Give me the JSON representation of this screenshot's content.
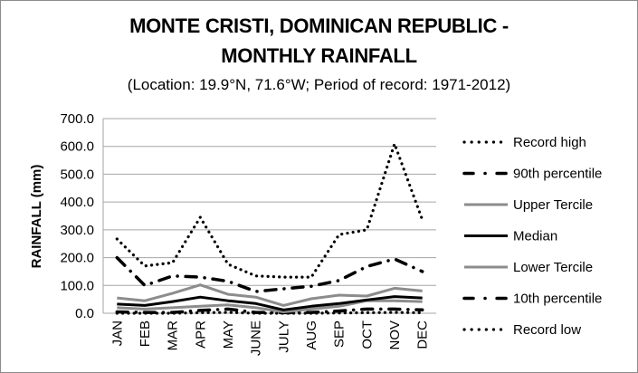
{
  "chart_data": {
    "type": "line",
    "title_line1": "MONTE CRISTI, DOMINICAN REPUBLIC -",
    "title_line2": "MONTHLY RAINFALL",
    "subtitle": "(Location: 19.9°N, 71.6°W; Period of record: 1971-2012)",
    "xlabel": "",
    "ylabel": "RAINFALL (mm)",
    "ylim": [
      0,
      700
    ],
    "yticks": [
      "0.0",
      "100.0",
      "200.0",
      "300.0",
      "400.0",
      "500.0",
      "600.0",
      "700.0"
    ],
    "ytick_values": [
      0,
      100,
      200,
      300,
      400,
      500,
      600,
      700
    ],
    "grid": true,
    "legend_position": "right",
    "categories": [
      "JAN",
      "FEB",
      "MAR",
      "APR",
      "MAY",
      "JUNE",
      "JULY",
      "AUG",
      "SEP",
      "OCT",
      "NOV",
      "DEC"
    ],
    "series": [
      {
        "name": "Record high",
        "color": "#000000",
        "style": "dotted",
        "values": [
          267,
          170,
          182,
          345,
          176,
          134,
          130,
          130,
          283,
          300,
          609,
          336
        ]
      },
      {
        "name": "90th percentile",
        "color": "#000000",
        "style": "dashdot",
        "values": [
          200,
          100,
          134,
          130,
          115,
          78,
          88,
          97,
          118,
          168,
          195,
          150
        ]
      },
      {
        "name": "Upper Tercile",
        "color": "#8c8c8c",
        "style": "solid",
        "values": [
          55,
          45,
          72,
          102,
          68,
          58,
          28,
          52,
          65,
          62,
          90,
          80
        ]
      },
      {
        "name": "Median",
        "color": "#000000",
        "style": "solid",
        "values": [
          33,
          28,
          42,
          58,
          45,
          35,
          12,
          25,
          35,
          48,
          60,
          55
        ]
      },
      {
        "name": "Lower Tercile",
        "color": "#8c8c8c",
        "style": "solid",
        "values": [
          20,
          15,
          20,
          25,
          30,
          20,
          5,
          15,
          25,
          45,
          45,
          42
        ]
      },
      {
        "name": "10th percentile",
        "color": "#000000",
        "style": "dashdot",
        "values": [
          5,
          3,
          3,
          10,
          15,
          3,
          2,
          3,
          8,
          15,
          15,
          12
        ]
      },
      {
        "name": "Record low",
        "color": "#000000",
        "style": "dotted",
        "values": [
          0,
          0,
          0,
          2,
          3,
          0,
          0,
          0,
          1,
          2,
          3,
          2
        ]
      }
    ]
  }
}
